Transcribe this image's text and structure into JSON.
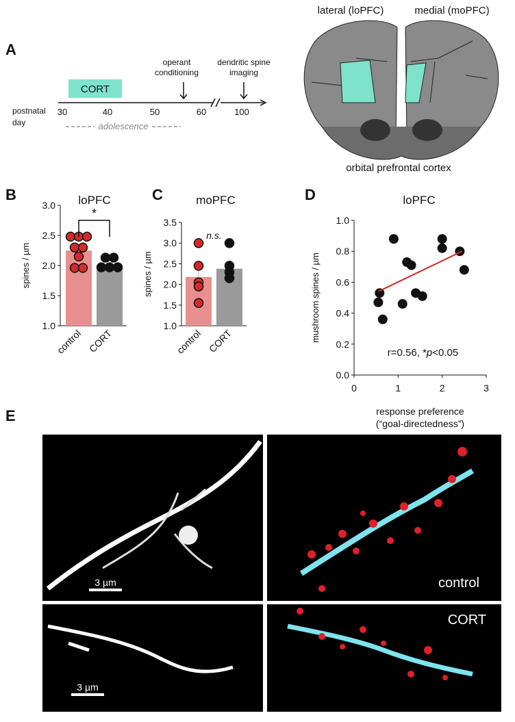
{
  "panel_a": {
    "label": "A",
    "stage": "CORT",
    "x_label": [
      "postnatal",
      "day"
    ],
    "ticks": [
      "30",
      "40",
      "50",
      "60",
      "100"
    ],
    "period": "adolescence",
    "events": [
      [
        "operant",
        "conditioning"
      ],
      [
        "dendritic spine",
        "imaging"
      ]
    ],
    "brain": {
      "left": "lateral (loPFC)",
      "right": "medial (moPFC)",
      "caption": "orbital prefrontal cortex"
    }
  },
  "chart_data": [
    {
      "type": "bar",
      "panel": "B",
      "title": "loPFC",
      "y_label": "spines / µm",
      "categories": [
        "control",
        "CORT"
      ],
      "values": [
        2.25,
        1.98
      ],
      "errors": [
        0.1,
        0.05
      ],
      "colors": [
        "#e8908f",
        "#9a9a9a"
      ],
      "point_colors": [
        "#d42a2a",
        "#111111"
      ],
      "points": [
        [
          2.48,
          2.48,
          2.48,
          2.3,
          2.3,
          2.15,
          1.96,
          1.96
        ],
        [
          2.13,
          2.13,
          1.97,
          1.97,
          1.97
        ]
      ],
      "annotation": "*",
      "ylim": [
        1,
        3
      ],
      "yticks": [
        {
          "value": 1,
          "label": "1.0"
        },
        {
          "value": 1.5,
          "label": "1.5"
        },
        {
          "value": 2,
          "label": "2.0"
        },
        {
          "value": 2.5,
          "label": "2.5"
        },
        {
          "value": 3,
          "label": "3.0"
        }
      ]
    },
    {
      "type": "bar",
      "panel": "C",
      "title": "moPFC",
      "y_label": "spines / µm",
      "categories": [
        "control",
        "CORT"
      ],
      "values": [
        2.18,
        2.38
      ],
      "errors": [
        0.25,
        0.22
      ],
      "colors": [
        "#e8908f",
        "#9a9a9a"
      ],
      "point_colors": [
        "#d42a2a",
        "#111111"
      ],
      "points": [
        [
          3.0,
          2.45,
          2.05,
          1.95,
          1.55
        ],
        [
          3.0,
          2.45,
          2.3,
          2.15
        ]
      ],
      "annotation": "n.s.",
      "ylim": [
        1,
        3.5
      ],
      "yticks": [
        {
          "value": 1,
          "label": "1.0"
        },
        {
          "value": 1.5,
          "label": "1.5"
        },
        {
          "value": 2,
          "label": "2.0"
        },
        {
          "value": 2.5,
          "label": "2.5"
        },
        {
          "value": 3,
          "label": "3.0"
        },
        {
          "value": 3.5,
          "label": "3.5"
        }
      ]
    },
    {
      "type": "scatter",
      "panel": "D",
      "title": "loPFC",
      "y_label": "mushroom spines / µm",
      "x_label": [
        "response preference",
        "(“goal-directedness”)"
      ],
      "x": [
        0.55,
        0.58,
        0.65,
        0.9,
        1.1,
        1.2,
        1.3,
        1.4,
        1.55,
        2.0,
        2.0,
        2.4,
        2.5
      ],
      "y": [
        0.47,
        0.53,
        0.36,
        0.88,
        0.46,
        0.73,
        0.71,
        0.53,
        0.51,
        0.88,
        0.82,
        0.8,
        0.68
      ],
      "color": "#111111",
      "fit": {
        "x": [
          0.55,
          2.45
        ],
        "y": [
          0.54,
          0.8
        ],
        "color": "#cc2a2a"
      },
      "annotation": [
        "r=0.56, *",
        "p",
        "<0.05"
      ],
      "xlim": [
        0,
        3
      ],
      "xticks": [
        0,
        1,
        2,
        3
      ],
      "ylim": [
        0,
        1
      ],
      "yticks": [
        {
          "value": 0,
          "label": "0.0"
        },
        {
          "value": 0.2,
          "label": "0.2"
        },
        {
          "value": 0.4,
          "label": "0.4"
        },
        {
          "value": 0.6,
          "label": "0.6"
        },
        {
          "value": 0.8,
          "label": "0.8"
        },
        {
          "value": 1,
          "label": "1.0"
        }
      ]
    }
  ],
  "panel_e": {
    "label": "E",
    "scale_bars": [
      "3 µm",
      "3 µm"
    ],
    "conditions": [
      "control",
      "CORT"
    ]
  }
}
